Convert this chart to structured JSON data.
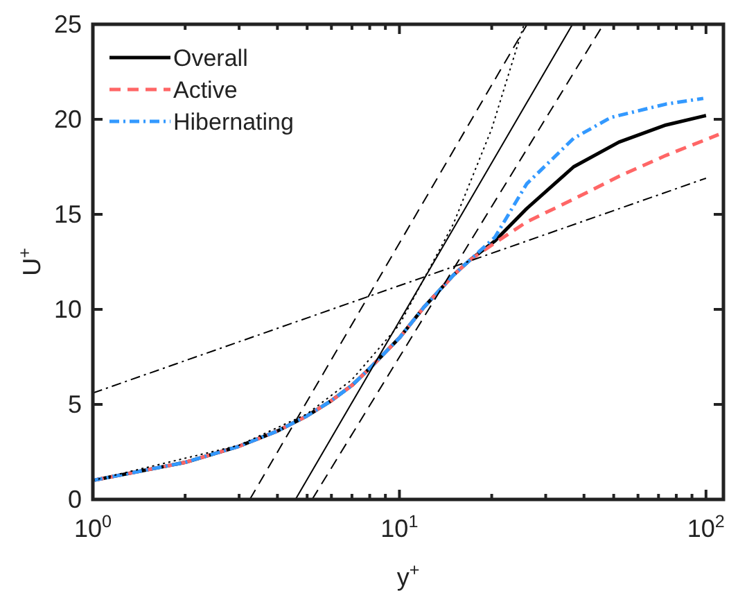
{
  "chart_data": {
    "type": "line",
    "xlabel": "y$^{+}$",
    "ylabel": "U$^{+}$",
    "log": "x",
    "xlim": [
      1,
      114
    ],
    "ylim": [
      0,
      25
    ],
    "xticks": [
      {
        "value": 1,
        "label": "10$^{0}$"
      },
      {
        "value": 2,
        "label": null
      },
      {
        "value": 3,
        "label": null
      },
      {
        "value": 4,
        "label": null
      },
      {
        "value": 5,
        "label": null
      },
      {
        "value": 6,
        "label": null
      },
      {
        "value": 7,
        "label": null
      },
      {
        "value": 8,
        "label": null
      },
      {
        "value": 9,
        "label": null
      },
      {
        "value": 10,
        "label": "10$^{1}$"
      },
      {
        "value": 20,
        "label": null
      },
      {
        "value": 30,
        "label": null
      },
      {
        "value": 40,
        "label": null
      },
      {
        "value": 50,
        "label": null
      },
      {
        "value": 60,
        "label": null
      },
      {
        "value": 70,
        "label": null
      },
      {
        "value": 80,
        "label": null
      },
      {
        "value": 90,
        "label": null
      },
      {
        "value": 100,
        "label": "10$^{2}$"
      }
    ],
    "yticks": [
      0,
      5,
      10,
      15,
      20,
      25
    ],
    "grid": false,
    "legend": "top left",
    "series": [
      {
        "name": "Overall",
        "color": "#000000",
        "line_style": "solid",
        "x": [
          1,
          2,
          3,
          4,
          5,
          6,
          7,
          8,
          10,
          12,
          15,
          17,
          20.5,
          26,
          37,
          52,
          74,
          100
        ],
        "values": [
          1,
          1.95,
          2.8,
          3.6,
          4.4,
          5.2,
          6.0,
          6.9,
          8.5,
          10.1,
          11.8,
          12.6,
          13.6,
          15.3,
          17.5,
          18.8,
          19.7,
          20.2
        ]
      },
      {
        "name": "Active",
        "color": "#ff6666",
        "line_style": "dashed",
        "x": [
          1,
          2,
          3,
          4,
          5,
          6,
          7,
          8,
          10,
          12,
          15,
          17,
          20.5,
          26,
          37,
          52,
          74,
          110
        ],
        "values": [
          1,
          1.95,
          2.8,
          3.6,
          4.4,
          5.2,
          6.0,
          6.9,
          8.5,
          10.1,
          11.8,
          12.6,
          13.5,
          14.6,
          15.8,
          17.0,
          18.1,
          19.2
        ]
      },
      {
        "name": "Hibernating",
        "color": "#3399ff",
        "line_style": "dashdot",
        "x": [
          1,
          2,
          3,
          4,
          5,
          6,
          7,
          8,
          10,
          12,
          15,
          17,
          20.5,
          26,
          37,
          49,
          74,
          98
        ],
        "values": [
          1,
          1.95,
          2.8,
          3.6,
          4.4,
          5.2,
          6.0,
          6.9,
          8.5,
          10.1,
          11.8,
          12.6,
          13.8,
          16.6,
          19.0,
          20.1,
          20.8,
          21.1
        ]
      },
      {
        "color": "#000000",
        "line_style": "solid",
        "x": [
          4.58,
          36.7
        ],
        "values": [
          0,
          25
        ]
      },
      {
        "color": "#000000",
        "line_style": "dashed",
        "x": [
          3.25,
          26.1
        ],
        "values": [
          0,
          25
        ]
      },
      {
        "color": "#000000",
        "line_style": "dashed",
        "x": [
          5.19,
          46.3
        ],
        "values": [
          0,
          25
        ]
      },
      {
        "color": "#000000",
        "line_style": "dotted",
        "x": [
          1,
          3,
          5,
          7,
          10,
          15,
          20,
          25.5
        ],
        "values": [
          1,
          2.85,
          4.5,
          6.3,
          9.2,
          14.5,
          19.5,
          25
        ]
      },
      {
        "color": "#000000",
        "line_style": "dashdot",
        "x": [
          1,
          100
        ],
        "values": [
          5.6,
          16.9
        ]
      }
    ]
  }
}
